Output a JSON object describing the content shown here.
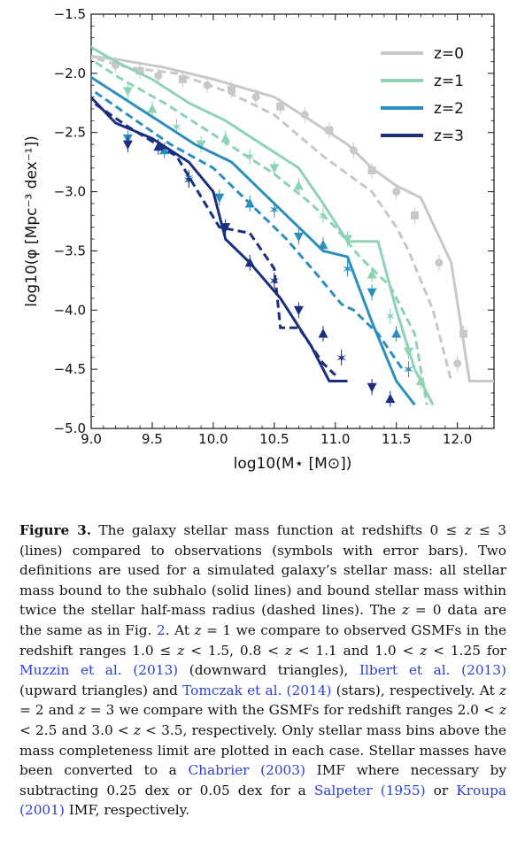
{
  "chart_data": {
    "type": "line",
    "title": "",
    "xlabel": "log10(M⋆ [M⊙])",
    "ylabel": "log10(φ [Mpc⁻³ dex⁻¹])",
    "xlim": [
      9.0,
      12.3
    ],
    "ylim": [
      -5.0,
      -1.5
    ],
    "x_ticks": [
      "9.0",
      "9.5",
      "10.0",
      "10.5",
      "11.0",
      "11.5",
      "12.0"
    ],
    "y_ticks": [
      "−1.5",
      "−2.0",
      "−2.5",
      "−3.0",
      "−3.5",
      "−4.0",
      "−4.5",
      "−5.0"
    ],
    "legend_position": "top-right",
    "series": [
      {
        "name": "z=0",
        "color": "#c8c8c8",
        "solid": [
          [
            8.95,
            -1.85
          ],
          [
            9.2,
            -1.88
          ],
          [
            9.6,
            -1.95
          ],
          [
            10.0,
            -2.05
          ],
          [
            10.5,
            -2.2
          ],
          [
            10.8,
            -2.4
          ],
          [
            11.1,
            -2.6
          ],
          [
            11.3,
            -2.8
          ],
          [
            11.5,
            -2.95
          ],
          [
            11.7,
            -3.05
          ],
          [
            11.95,
            -3.6
          ],
          [
            12.1,
            -4.6
          ],
          [
            12.3,
            -4.6
          ]
        ],
        "dashed": [
          [
            8.95,
            -1.85
          ],
          [
            9.3,
            -1.95
          ],
          [
            9.7,
            -2.0
          ],
          [
            10.1,
            -2.15
          ],
          [
            10.5,
            -2.35
          ],
          [
            10.9,
            -2.7
          ],
          [
            11.3,
            -3.0
          ],
          [
            11.5,
            -3.3
          ],
          [
            11.6,
            -3.5
          ],
          [
            11.8,
            -4.0
          ],
          [
            11.95,
            -4.6
          ]
        ],
        "points": [
          [
            9.2,
            -1.93
          ],
          [
            9.4,
            -1.98
          ],
          [
            9.55,
            -2.02
          ],
          [
            9.75,
            -2.05
          ],
          [
            9.95,
            -2.1
          ],
          [
            10.15,
            -2.14
          ],
          [
            10.35,
            -2.2
          ],
          [
            10.55,
            -2.28
          ],
          [
            10.75,
            -2.35
          ],
          [
            10.95,
            -2.48
          ],
          [
            11.15,
            -2.65
          ],
          [
            11.3,
            -2.82
          ],
          [
            11.5,
            -3.0
          ],
          [
            11.65,
            -3.2
          ],
          [
            11.85,
            -3.6
          ],
          [
            12.05,
            -4.2
          ],
          [
            12.0,
            -4.45
          ]
        ]
      },
      {
        "name": "z=1",
        "color": "#8dd3b4",
        "solid": [
          [
            8.95,
            -1.75
          ],
          [
            9.2,
            -1.9
          ],
          [
            9.5,
            -2.05
          ],
          [
            9.8,
            -2.25
          ],
          [
            10.1,
            -2.4
          ],
          [
            10.4,
            -2.6
          ],
          [
            10.7,
            -2.8
          ],
          [
            10.9,
            -3.1
          ],
          [
            11.1,
            -3.42
          ],
          [
            11.35,
            -3.42
          ],
          [
            11.5,
            -4.0
          ],
          [
            11.65,
            -4.5
          ],
          [
            11.8,
            -4.8
          ]
        ],
        "dashed": [
          [
            8.95,
            -1.85
          ],
          [
            9.25,
            -2.05
          ],
          [
            9.6,
            -2.25
          ],
          [
            9.9,
            -2.45
          ],
          [
            10.2,
            -2.65
          ],
          [
            10.5,
            -2.85
          ],
          [
            10.8,
            -3.1
          ],
          [
            11.0,
            -3.3
          ],
          [
            11.2,
            -3.55
          ],
          [
            11.45,
            -3.8
          ],
          [
            11.65,
            -4.2
          ],
          [
            11.75,
            -4.8
          ]
        ],
        "points": [
          [
            9.3,
            -2.15
          ],
          [
            9.5,
            -2.3
          ],
          [
            9.7,
            -2.45
          ],
          [
            9.9,
            -2.6
          ],
          [
            10.1,
            -2.55
          ],
          [
            10.3,
            -2.7
          ],
          [
            10.5,
            -2.8
          ],
          [
            10.7,
            -2.95
          ],
          [
            10.9,
            -3.2
          ],
          [
            11.1,
            -3.4
          ],
          [
            11.3,
            -3.7
          ],
          [
            11.45,
            -4.05
          ],
          [
            11.6,
            -4.35
          ],
          [
            11.7,
            -4.6
          ]
        ]
      },
      {
        "name": "z=2",
        "color": "#2a8fbf",
        "solid": [
          [
            8.95,
            -2.0
          ],
          [
            9.25,
            -2.2
          ],
          [
            9.55,
            -2.4
          ],
          [
            9.85,
            -2.6
          ],
          [
            10.15,
            -2.75
          ],
          [
            10.45,
            -3.05
          ],
          [
            10.7,
            -3.3
          ],
          [
            10.9,
            -3.5
          ],
          [
            11.1,
            -3.55
          ],
          [
            11.3,
            -4.1
          ],
          [
            11.5,
            -4.6
          ],
          [
            11.65,
            -4.8
          ]
        ],
        "dashed": [
          [
            8.95,
            -2.1
          ],
          [
            9.3,
            -2.35
          ],
          [
            9.65,
            -2.6
          ],
          [
            10.0,
            -2.8
          ],
          [
            10.3,
            -3.1
          ],
          [
            10.6,
            -3.4
          ],
          [
            10.85,
            -3.7
          ],
          [
            11.05,
            -3.95
          ],
          [
            11.15,
            -4.0
          ],
          [
            11.35,
            -4.2
          ],
          [
            11.55,
            -4.5
          ]
        ],
        "points": [
          [
            9.3,
            -2.55
          ],
          [
            9.6,
            -2.65
          ],
          [
            9.8,
            -2.88
          ],
          [
            10.05,
            -3.05
          ],
          [
            10.3,
            -3.1
          ],
          [
            10.5,
            -3.15
          ],
          [
            10.7,
            -3.38
          ],
          [
            10.9,
            -3.45
          ],
          [
            11.1,
            -3.65
          ],
          [
            11.3,
            -3.85
          ],
          [
            11.5,
            -4.2
          ],
          [
            11.6,
            -4.5
          ]
        ]
      },
      {
        "name": "z=3",
        "color": "#1a2f80",
        "solid": [
          [
            8.95,
            -2.15
          ],
          [
            9.2,
            -2.42
          ],
          [
            9.5,
            -2.55
          ],
          [
            9.8,
            -2.75
          ],
          [
            10.0,
            -3.0
          ],
          [
            10.1,
            -3.4
          ],
          [
            10.3,
            -3.6
          ],
          [
            10.55,
            -3.9
          ],
          [
            10.8,
            -4.3
          ],
          [
            10.95,
            -4.6
          ],
          [
            11.1,
            -4.6
          ]
        ],
        "dashed": [
          [
            8.95,
            -2.2
          ],
          [
            9.3,
            -2.45
          ],
          [
            9.7,
            -2.7
          ],
          [
            10.05,
            -3.3
          ],
          [
            10.3,
            -3.35
          ],
          [
            10.5,
            -3.65
          ],
          [
            10.55,
            -4.15
          ],
          [
            10.7,
            -4.15
          ],
          [
            10.9,
            -4.45
          ],
          [
            11.0,
            -4.55
          ]
        ],
        "points": [
          [
            9.3,
            -2.6
          ],
          [
            9.55,
            -2.62
          ],
          [
            9.8,
            -2.9
          ],
          [
            10.1,
            -3.3
          ],
          [
            10.3,
            -3.6
          ],
          [
            10.5,
            -3.75
          ],
          [
            10.7,
            -4.0
          ],
          [
            10.9,
            -4.2
          ],
          [
            11.05,
            -4.4
          ],
          [
            11.3,
            -4.65
          ],
          [
            11.45,
            -4.75
          ]
        ]
      }
    ]
  },
  "caption": {
    "label": "Figure 3.",
    "parts": [
      " The galaxy stellar mass function at redshifts 0 ≤ ",
      "z",
      " ≤ 3 (lines) compared to observations (symbols with error bars). Two definitions are used for a simulated galaxy’s stellar mass: all stellar mass bound to the subhalo (solid lines) and bound stellar mass within twice the stellar half-mass radius (dashed lines). The ",
      "z",
      " = 0 data are the same as in Fig. ",
      "2",
      ". At ",
      "z",
      " = 1 we compare to observed GSMFs in the redshift ranges 1.0 ≤ ",
      "z",
      " < 1.5, 0.8 < ",
      "z",
      " < 1.1 and 1.0 < ",
      "z",
      " < 1.25 for ",
      "Muzzin et al. (2013)",
      " (downward triangles), ",
      "Ilbert et al. (2013)",
      " (upward triangles) and ",
      "Tomczak et al. (2014)",
      " (stars), respectively. At ",
      "z",
      " = 2 and ",
      "z",
      " = 3 we compare with the GSMFs for redshift ranges 2.0 < ",
      "z",
      " < 2.5 and 3.0 < ",
      "z",
      " < 3.5, respectively. Only stellar mass bins above the mass completeness limit are plotted in each case. Stellar masses have been converted to a ",
      "Chabrier (2003)",
      " IMF where necessary by subtracting 0.25 dex or 0.05 dex for a ",
      "Salpeter (1955)",
      " or ",
      "Kroupa (2001)",
      " IMF, respectively."
    ]
  }
}
